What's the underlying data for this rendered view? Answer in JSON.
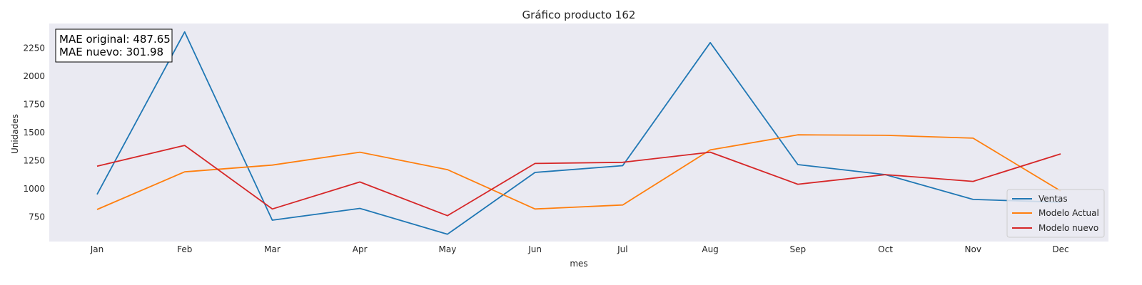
{
  "chart_data": {
    "type": "line",
    "title": "Gráfico producto 162",
    "xlabel": "mes",
    "ylabel": "Unidades",
    "categories": [
      "Jan",
      "Feb",
      "Mar",
      "Apr",
      "May",
      "Jun",
      "Jul",
      "Aug",
      "Sep",
      "Oct",
      "Nov",
      "Dec"
    ],
    "ylim": [
      530,
      2470
    ],
    "yticks": [
      750,
      1000,
      1250,
      1500,
      1750,
      2000,
      2250
    ],
    "grid": false,
    "legend_position": "lower-right",
    "series": [
      {
        "name": "Ventas",
        "color": "#1f77b4",
        "values": [
          950,
          2395,
          720,
          825,
          595,
          1145,
          1205,
          2300,
          1215,
          1125,
          905,
          880
        ]
      },
      {
        "name": "Modelo Actual",
        "color": "#ff7f0e",
        "values": [
          815,
          1150,
          1210,
          1325,
          1170,
          820,
          855,
          1345,
          1480,
          1475,
          1450,
          980
        ]
      },
      {
        "name": "Modelo nuevo",
        "color": "#d62728",
        "values": [
          1200,
          1385,
          820,
          1060,
          760,
          1225,
          1235,
          1325,
          1040,
          1125,
          1065,
          1310
        ]
      }
    ],
    "annotation": [
      "MAE original: 487.65",
      "MAE nuevo: 301.98"
    ]
  },
  "style": {
    "plot_background": "#eaeaf2"
  }
}
